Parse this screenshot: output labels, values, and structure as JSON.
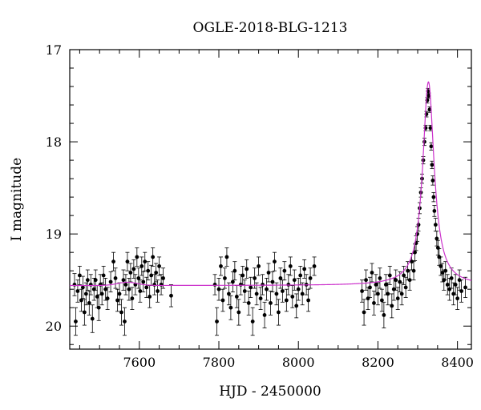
{
  "chart_data": {
    "type": "scatter",
    "title": "OGLE-2018-BLG-1213",
    "xlabel": "HJD - 2450000",
    "ylabel": "I magnitude",
    "xlim": [
      7425,
      8435
    ],
    "ylim": [
      20.25,
      17.0
    ],
    "y_inverted": true,
    "x_ticks": [
      7600,
      7800,
      8000,
      8200,
      8400
    ],
    "x_tick_labels": [
      "7600",
      "7800",
      "8000",
      "8200",
      "8400"
    ],
    "y_ticks": [
      17,
      18,
      19,
      20
    ],
    "y_tick_labels": [
      "17",
      "18",
      "19",
      "20"
    ],
    "grid": false,
    "series": [
      {
        "kind": "points_with_errorbars",
        "color": "#000000",
        "points": [
          [
            7437,
            19.55,
            0.12
          ],
          [
            7440,
            19.95,
            0.15
          ],
          [
            7445,
            19.62,
            0.12
          ],
          [
            7450,
            19.45,
            0.1
          ],
          [
            7454,
            19.72,
            0.12
          ],
          [
            7458,
            19.58,
            0.12
          ],
          [
            7462,
            19.85,
            0.14
          ],
          [
            7466,
            19.65,
            0.12
          ],
          [
            7470,
            19.5,
            0.11
          ],
          [
            7474,
            19.75,
            0.13
          ],
          [
            7478,
            19.55,
            0.11
          ],
          [
            7482,
            19.92,
            0.15
          ],
          [
            7486,
            19.6,
            0.12
          ],
          [
            7490,
            19.5,
            0.11
          ],
          [
            7494,
            19.68,
            0.12
          ],
          [
            7498,
            19.8,
            0.14
          ],
          [
            7502,
            19.55,
            0.11
          ],
          [
            7506,
            19.65,
            0.12
          ],
          [
            7510,
            19.45,
            0.1
          ],
          [
            7515,
            19.6,
            0.12
          ],
          [
            7520,
            19.7,
            0.12
          ],
          [
            7528,
            19.52,
            0.11
          ],
          [
            7535,
            19.3,
            0.1
          ],
          [
            7540,
            19.48,
            0.11
          ],
          [
            7545,
            19.72,
            0.12
          ],
          [
            7550,
            19.65,
            0.12
          ],
          [
            7555,
            19.85,
            0.14
          ],
          [
            7560,
            19.5,
            0.11
          ],
          [
            7563,
            19.95,
            0.15
          ],
          [
            7566,
            19.55,
            0.11
          ],
          [
            7570,
            19.3,
            0.1
          ],
          [
            7574,
            19.6,
            0.12
          ],
          [
            7578,
            19.42,
            0.1
          ],
          [
            7582,
            19.7,
            0.12
          ],
          [
            7586,
            19.38,
            0.1
          ],
          [
            7590,
            19.55,
            0.11
          ],
          [
            7594,
            19.25,
            0.1
          ],
          [
            7598,
            19.48,
            0.11
          ],
          [
            7602,
            19.62,
            0.12
          ],
          [
            7606,
            19.35,
            0.1
          ],
          [
            7610,
            19.52,
            0.11
          ],
          [
            7614,
            19.3,
            0.1
          ],
          [
            7618,
            19.58,
            0.11
          ],
          [
            7622,
            19.4,
            0.1
          ],
          [
            7626,
            19.68,
            0.12
          ],
          [
            7630,
            19.45,
            0.11
          ],
          [
            7634,
            19.25,
            0.1
          ],
          [
            7638,
            19.55,
            0.11
          ],
          [
            7642,
            19.42,
            0.1
          ],
          [
            7646,
            19.62,
            0.12
          ],
          [
            7650,
            19.35,
            0.1
          ],
          [
            7655,
            19.55,
            0.11
          ],
          [
            7660,
            19.48,
            0.11
          ],
          [
            7680,
            19.67,
            0.12
          ],
          [
            7790,
            19.55,
            0.11
          ],
          [
            7795,
            19.95,
            0.15
          ],
          [
            7800,
            19.6,
            0.12
          ],
          [
            7805,
            19.35,
            0.1
          ],
          [
            7810,
            19.72,
            0.12
          ],
          [
            7815,
            19.48,
            0.11
          ],
          [
            7820,
            19.25,
            0.1
          ],
          [
            7825,
            19.65,
            0.12
          ],
          [
            7830,
            19.8,
            0.13
          ],
          [
            7835,
            19.52,
            0.11
          ],
          [
            7840,
            19.4,
            0.1
          ],
          [
            7845,
            19.68,
            0.12
          ],
          [
            7850,
            19.85,
            0.14
          ],
          [
            7855,
            19.55,
            0.11
          ],
          [
            7860,
            19.45,
            0.1
          ],
          [
            7865,
            19.62,
            0.12
          ],
          [
            7870,
            19.38,
            0.1
          ],
          [
            7875,
            19.75,
            0.13
          ],
          [
            7880,
            19.58,
            0.11
          ],
          [
            7885,
            19.95,
            0.15
          ],
          [
            7890,
            19.48,
            0.11
          ],
          [
            7895,
            19.65,
            0.12
          ],
          [
            7900,
            19.35,
            0.1
          ],
          [
            7905,
            19.7,
            0.12
          ],
          [
            7910,
            19.55,
            0.11
          ],
          [
            7915,
            19.88,
            0.14
          ],
          [
            7920,
            19.6,
            0.12
          ],
          [
            7925,
            19.42,
            0.1
          ],
          [
            7930,
            19.75,
            0.13
          ],
          [
            7935,
            19.52,
            0.11
          ],
          [
            7940,
            19.3,
            0.1
          ],
          [
            7945,
            19.65,
            0.12
          ],
          [
            7950,
            19.85,
            0.14
          ],
          [
            7955,
            19.48,
            0.11
          ],
          [
            7960,
            19.62,
            0.12
          ],
          [
            7965,
            19.4,
            0.1
          ],
          [
            7970,
            19.72,
            0.12
          ],
          [
            7975,
            19.55,
            0.11
          ],
          [
            7980,
            19.35,
            0.1
          ],
          [
            7985,
            19.68,
            0.12
          ],
          [
            7990,
            19.5,
            0.11
          ],
          [
            7995,
            19.78,
            0.13
          ],
          [
            8000,
            19.6,
            0.12
          ],
          [
            8005,
            19.45,
            0.1
          ],
          [
            8010,
            19.65,
            0.12
          ],
          [
            8015,
            19.38,
            0.1
          ],
          [
            8020,
            19.55,
            0.11
          ],
          [
            8025,
            19.72,
            0.12
          ],
          [
            8030,
            19.48,
            0.11
          ],
          [
            8040,
            19.35,
            0.1
          ],
          [
            8160,
            19.62,
            0.12
          ],
          [
            8165,
            19.85,
            0.14
          ],
          [
            8170,
            19.5,
            0.11
          ],
          [
            8175,
            19.7,
            0.12
          ],
          [
            8180,
            19.58,
            0.11
          ],
          [
            8185,
            19.42,
            0.1
          ],
          [
            8190,
            19.75,
            0.13
          ],
          [
            8195,
            19.55,
            0.11
          ],
          [
            8200,
            19.65,
            0.12
          ],
          [
            8205,
            19.48,
            0.11
          ],
          [
            8210,
            19.72,
            0.12
          ],
          [
            8215,
            19.88,
            0.14
          ],
          [
            8220,
            19.55,
            0.11
          ],
          [
            8225,
            19.65,
            0.12
          ],
          [
            8230,
            19.45,
            0.1
          ],
          [
            8235,
            19.78,
            0.13
          ],
          [
            8240,
            19.6,
            0.12
          ],
          [
            8245,
            19.5,
            0.11
          ],
          [
            8250,
            19.7,
            0.12
          ],
          [
            8255,
            19.52,
            0.11
          ],
          [
            8260,
            19.65,
            0.12
          ],
          [
            8265,
            19.45,
            0.1
          ],
          [
            8270,
            19.58,
            0.11
          ],
          [
            8275,
            19.4,
            0.1
          ],
          [
            8280,
            19.5,
            0.11
          ],
          [
            8285,
            19.3,
            0.09
          ],
          [
            8290,
            19.4,
            0.1
          ],
          [
            8293,
            19.2,
            0.09
          ],
          [
            8296,
            19.1,
            0.08
          ],
          [
            8299,
            19.0,
            0.08
          ],
          [
            8302,
            18.9,
            0.07
          ],
          [
            8305,
            18.72,
            0.06
          ],
          [
            8308,
            18.55,
            0.05
          ],
          [
            8311,
            18.4,
            0.05
          ],
          [
            8314,
            18.2,
            0.04
          ],
          [
            8317,
            18.0,
            0.04
          ],
          [
            8320,
            17.85,
            0.03
          ],
          [
            8322,
            17.7,
            0.03
          ],
          [
            8324,
            17.55,
            0.03
          ],
          [
            8326,
            17.45,
            0.03
          ],
          [
            8328,
            17.5,
            0.03
          ],
          [
            8330,
            17.65,
            0.03
          ],
          [
            8332,
            17.85,
            0.03
          ],
          [
            8334,
            18.05,
            0.04
          ],
          [
            8336,
            18.25,
            0.04
          ],
          [
            8338,
            18.42,
            0.05
          ],
          [
            8340,
            18.6,
            0.05
          ],
          [
            8342,
            18.75,
            0.06
          ],
          [
            8345,
            18.9,
            0.07
          ],
          [
            8348,
            19.05,
            0.08
          ],
          [
            8351,
            19.15,
            0.08
          ],
          [
            8354,
            19.25,
            0.09
          ],
          [
            8358,
            19.35,
            0.1
          ],
          [
            8362,
            19.42,
            0.1
          ],
          [
            8366,
            19.5,
            0.11
          ],
          [
            8370,
            19.4,
            0.1
          ],
          [
            8375,
            19.55,
            0.11
          ],
          [
            8380,
            19.6,
            0.12
          ],
          [
            8385,
            19.48,
            0.11
          ],
          [
            8390,
            19.65,
            0.12
          ],
          [
            8395,
            19.55,
            0.11
          ],
          [
            8400,
            19.7,
            0.12
          ],
          [
            8405,
            19.5,
            0.11
          ],
          [
            8410,
            19.62,
            0.12
          ],
          [
            8420,
            19.58,
            0.11
          ]
        ]
      },
      {
        "kind": "model_curve",
        "color": "#cc33cc",
        "baseline": 19.56,
        "peak_time": 8327,
        "peak_mag": 17.35,
        "timescale": 22,
        "bump_time": 7570,
        "bump_amplitude": 0.035,
        "bump_width": 35
      }
    ]
  }
}
